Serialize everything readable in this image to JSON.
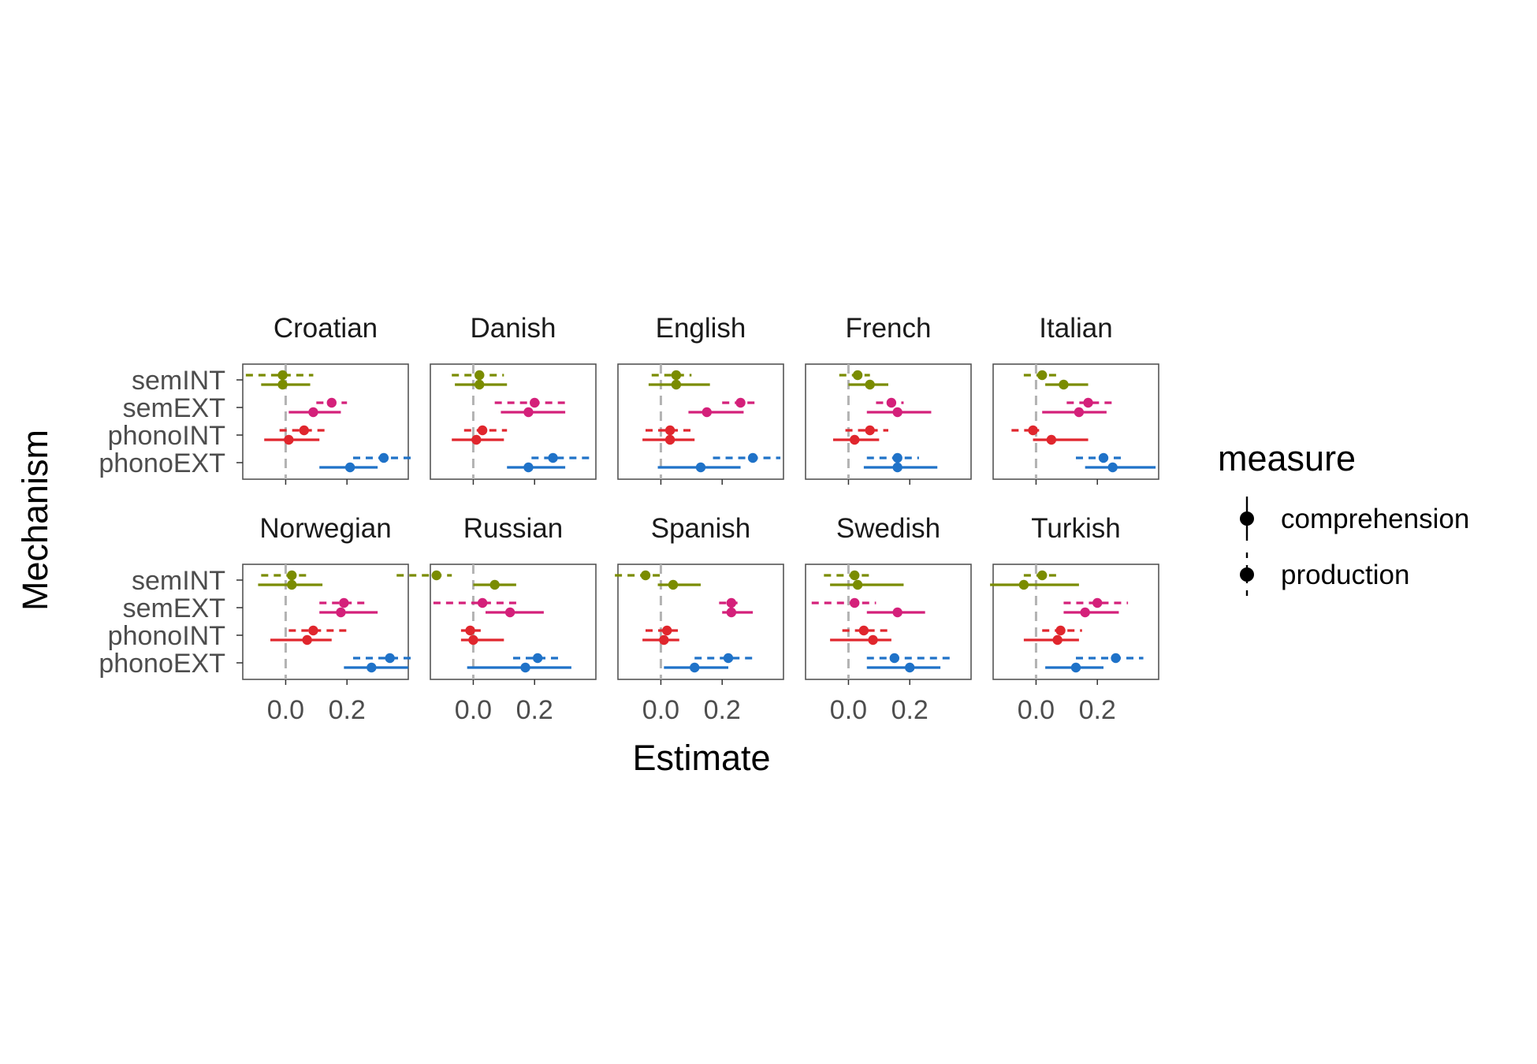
{
  "chart_data": {
    "type": "scatter",
    "chart_style": "faceted dot-and-whisker (point estimate with interval)",
    "xlabel": "Estimate",
    "ylabel": "Mechanism",
    "xlim": [
      -0.14,
      0.4
    ],
    "x_ticks": [
      0.0,
      0.2
    ],
    "x_tick_labels": [
      "0.0",
      "0.2"
    ],
    "reference_line_x": 0.0,
    "categories": [
      "semINT",
      "semEXT",
      "phonoINT",
      "phonoEXT"
    ],
    "category_colors": {
      "semINT": "#7a8c00",
      "semEXT": "#d4207a",
      "phonoINT": "#e0262d",
      "phonoEXT": "#1f72c8"
    },
    "colors": {
      "reference_line": "#b3b3b3",
      "panel_border": "#555555",
      "text": "#000000",
      "tick_text": "#4d4d4d"
    },
    "legend": {
      "title": "measure",
      "placement": "right",
      "entries": [
        {
          "name": "comprehension",
          "linestyle": "solid"
        },
        {
          "name": "production",
          "linestyle": "dashed"
        }
      ]
    },
    "facets": [
      {
        "name": "Croatian",
        "points": [
          {
            "category": "semINT",
            "measure": "production",
            "x": -0.01,
            "lo": -0.13,
            "hi": 0.09
          },
          {
            "category": "semINT",
            "measure": "comprehension",
            "x": -0.01,
            "lo": -0.08,
            "hi": 0.08
          },
          {
            "category": "semEXT",
            "measure": "production",
            "x": 0.15,
            "lo": 0.1,
            "hi": 0.2
          },
          {
            "category": "semEXT",
            "measure": "comprehension",
            "x": 0.09,
            "lo": 0.01,
            "hi": 0.18
          },
          {
            "category": "phonoINT",
            "measure": "production",
            "x": 0.06,
            "lo": -0.02,
            "hi": 0.14
          },
          {
            "category": "phonoINT",
            "measure": "comprehension",
            "x": 0.01,
            "lo": -0.07,
            "hi": 0.11
          },
          {
            "category": "phonoEXT",
            "measure": "production",
            "x": 0.32,
            "lo": 0.22,
            "hi": 0.41
          },
          {
            "category": "phonoEXT",
            "measure": "comprehension",
            "x": 0.21,
            "lo": 0.11,
            "hi": 0.3
          }
        ]
      },
      {
        "name": "Danish",
        "points": [
          {
            "category": "semINT",
            "measure": "production",
            "x": 0.02,
            "lo": -0.07,
            "hi": 0.1
          },
          {
            "category": "semINT",
            "measure": "comprehension",
            "x": 0.02,
            "lo": -0.06,
            "hi": 0.11
          },
          {
            "category": "semEXT",
            "measure": "production",
            "x": 0.2,
            "lo": 0.07,
            "hi": 0.3
          },
          {
            "category": "semEXT",
            "measure": "comprehension",
            "x": 0.18,
            "lo": 0.09,
            "hi": 0.3
          },
          {
            "category": "phonoINT",
            "measure": "production",
            "x": 0.03,
            "lo": -0.03,
            "hi": 0.11
          },
          {
            "category": "phonoINT",
            "measure": "comprehension",
            "x": 0.01,
            "lo": -0.07,
            "hi": 0.1
          },
          {
            "category": "phonoEXT",
            "measure": "production",
            "x": 0.26,
            "lo": 0.19,
            "hi": 0.38
          },
          {
            "category": "phonoEXT",
            "measure": "comprehension",
            "x": 0.18,
            "lo": 0.11,
            "hi": 0.3
          }
        ]
      },
      {
        "name": "English",
        "points": [
          {
            "category": "semINT",
            "measure": "production",
            "x": 0.05,
            "lo": -0.03,
            "hi": 0.1
          },
          {
            "category": "semINT",
            "measure": "comprehension",
            "x": 0.05,
            "lo": -0.04,
            "hi": 0.16
          },
          {
            "category": "semEXT",
            "measure": "production",
            "x": 0.26,
            "lo": 0.2,
            "hi": 0.32
          },
          {
            "category": "semEXT",
            "measure": "comprehension",
            "x": 0.15,
            "lo": 0.09,
            "hi": 0.27
          },
          {
            "category": "phonoINT",
            "measure": "production",
            "x": 0.03,
            "lo": -0.05,
            "hi": 0.11
          },
          {
            "category": "phonoINT",
            "measure": "comprehension",
            "x": 0.03,
            "lo": -0.06,
            "hi": 0.11
          },
          {
            "category": "phonoEXT",
            "measure": "production",
            "x": 0.3,
            "lo": 0.17,
            "hi": 0.39
          },
          {
            "category": "phonoEXT",
            "measure": "comprehension",
            "x": 0.13,
            "lo": -0.01,
            "hi": 0.26
          }
        ]
      },
      {
        "name": "French",
        "points": [
          {
            "category": "semINT",
            "measure": "production",
            "x": 0.03,
            "lo": -0.03,
            "hi": 0.07
          },
          {
            "category": "semINT",
            "measure": "comprehension",
            "x": 0.07,
            "lo": 0.0,
            "hi": 0.13
          },
          {
            "category": "semEXT",
            "measure": "production",
            "x": 0.14,
            "lo": 0.09,
            "hi": 0.18
          },
          {
            "category": "semEXT",
            "measure": "comprehension",
            "x": 0.16,
            "lo": 0.06,
            "hi": 0.27
          },
          {
            "category": "phonoINT",
            "measure": "production",
            "x": 0.07,
            "lo": -0.01,
            "hi": 0.13
          },
          {
            "category": "phonoINT",
            "measure": "comprehension",
            "x": 0.02,
            "lo": -0.05,
            "hi": 0.1
          },
          {
            "category": "phonoEXT",
            "measure": "production",
            "x": 0.16,
            "lo": 0.06,
            "hi": 0.23
          },
          {
            "category": "phonoEXT",
            "measure": "comprehension",
            "x": 0.16,
            "lo": 0.05,
            "hi": 0.29
          }
        ]
      },
      {
        "name": "Italian",
        "points": [
          {
            "category": "semINT",
            "measure": "production",
            "x": 0.02,
            "lo": -0.04,
            "hi": 0.08
          },
          {
            "category": "semINT",
            "measure": "comprehension",
            "x": 0.09,
            "lo": 0.03,
            "hi": 0.17
          },
          {
            "category": "semEXT",
            "measure": "production",
            "x": 0.17,
            "lo": 0.1,
            "hi": 0.25
          },
          {
            "category": "semEXT",
            "measure": "comprehension",
            "x": 0.14,
            "lo": 0.02,
            "hi": 0.23
          },
          {
            "category": "phonoINT",
            "measure": "production",
            "x": -0.01,
            "lo": -0.08,
            "hi": 0.01
          },
          {
            "category": "phonoINT",
            "measure": "comprehension",
            "x": 0.05,
            "lo": -0.01,
            "hi": 0.17
          },
          {
            "category": "phonoEXT",
            "measure": "production",
            "x": 0.22,
            "lo": 0.13,
            "hi": 0.29
          },
          {
            "category": "phonoEXT",
            "measure": "comprehension",
            "x": 0.25,
            "lo": 0.16,
            "hi": 0.39
          }
        ]
      },
      {
        "name": "Norwegian",
        "points": [
          {
            "category": "semINT",
            "measure": "production",
            "x": 0.02,
            "lo": -0.08,
            "hi": 0.08
          },
          {
            "category": "semINT",
            "measure": "comprehension",
            "x": 0.02,
            "lo": -0.09,
            "hi": 0.12
          },
          {
            "category": "semEXT",
            "measure": "production",
            "x": 0.19,
            "lo": 0.11,
            "hi": 0.27
          },
          {
            "category": "semEXT",
            "measure": "comprehension",
            "x": 0.18,
            "lo": 0.11,
            "hi": 0.3
          },
          {
            "category": "phonoINT",
            "measure": "production",
            "x": 0.09,
            "lo": 0.01,
            "hi": 0.2
          },
          {
            "category": "phonoINT",
            "measure": "comprehension",
            "x": 0.07,
            "lo": -0.05,
            "hi": 0.15
          },
          {
            "category": "phonoEXT",
            "measure": "production",
            "x": 0.34,
            "lo": 0.22,
            "hi": 0.42
          },
          {
            "category": "phonoEXT",
            "measure": "comprehension",
            "x": 0.28,
            "lo": 0.19,
            "hi": 0.4
          }
        ]
      },
      {
        "name": "Russian",
        "points": [
          {
            "category": "semINT",
            "measure": "production",
            "x": -0.12,
            "lo": -0.25,
            "hi": -0.07
          },
          {
            "category": "semINT",
            "measure": "comprehension",
            "x": 0.07,
            "lo": 0.0,
            "hi": 0.14
          },
          {
            "category": "semEXT",
            "measure": "production",
            "x": 0.03,
            "lo": -0.13,
            "hi": 0.15
          },
          {
            "category": "semEXT",
            "measure": "comprehension",
            "x": 0.12,
            "lo": 0.04,
            "hi": 0.23
          },
          {
            "category": "phonoINT",
            "measure": "production",
            "x": -0.01,
            "lo": -0.04,
            "hi": 0.03
          },
          {
            "category": "phonoINT",
            "measure": "comprehension",
            "x": 0.0,
            "lo": -0.04,
            "hi": 0.1
          },
          {
            "category": "phonoEXT",
            "measure": "production",
            "x": 0.21,
            "lo": 0.13,
            "hi": 0.28
          },
          {
            "category": "phonoEXT",
            "measure": "comprehension",
            "x": 0.17,
            "lo": -0.02,
            "hi": 0.32
          }
        ]
      },
      {
        "name": "Spanish",
        "points": [
          {
            "category": "semINT",
            "measure": "production",
            "x": -0.05,
            "lo": -0.15,
            "hi": 0.0
          },
          {
            "category": "semINT",
            "measure": "comprehension",
            "x": 0.04,
            "lo": -0.01,
            "hi": 0.13
          },
          {
            "category": "semEXT",
            "measure": "production",
            "x": 0.23,
            "lo": 0.19,
            "hi": 0.25
          },
          {
            "category": "semEXT",
            "measure": "comprehension",
            "x": 0.23,
            "lo": 0.2,
            "hi": 0.3
          },
          {
            "category": "phonoINT",
            "measure": "production",
            "x": 0.02,
            "lo": -0.05,
            "hi": 0.07
          },
          {
            "category": "phonoINT",
            "measure": "comprehension",
            "x": 0.01,
            "lo": -0.06,
            "hi": 0.06
          },
          {
            "category": "phonoEXT",
            "measure": "production",
            "x": 0.22,
            "lo": 0.11,
            "hi": 0.31
          },
          {
            "category": "phonoEXT",
            "measure": "comprehension",
            "x": 0.11,
            "lo": 0.01,
            "hi": 0.22
          }
        ]
      },
      {
        "name": "Swedish",
        "points": [
          {
            "category": "semINT",
            "measure": "production",
            "x": 0.02,
            "lo": -0.08,
            "hi": 0.08
          },
          {
            "category": "semINT",
            "measure": "comprehension",
            "x": 0.03,
            "lo": -0.06,
            "hi": 0.18
          },
          {
            "category": "semEXT",
            "measure": "production",
            "x": 0.02,
            "lo": -0.12,
            "hi": 0.09
          },
          {
            "category": "semEXT",
            "measure": "comprehension",
            "x": 0.16,
            "lo": 0.06,
            "hi": 0.25
          },
          {
            "category": "phonoINT",
            "measure": "production",
            "x": 0.05,
            "lo": -0.02,
            "hi": 0.13
          },
          {
            "category": "phonoINT",
            "measure": "comprehension",
            "x": 0.08,
            "lo": -0.06,
            "hi": 0.14
          },
          {
            "category": "phonoEXT",
            "measure": "production",
            "x": 0.15,
            "lo": 0.06,
            "hi": 0.34
          },
          {
            "category": "phonoEXT",
            "measure": "comprehension",
            "x": 0.2,
            "lo": 0.06,
            "hi": 0.3
          }
        ]
      },
      {
        "name": "Turkish",
        "points": [
          {
            "category": "semINT",
            "measure": "production",
            "x": 0.02,
            "lo": -0.04,
            "hi": 0.08
          },
          {
            "category": "semINT",
            "measure": "comprehension",
            "x": -0.04,
            "lo": -0.15,
            "hi": 0.14
          },
          {
            "category": "semEXT",
            "measure": "production",
            "x": 0.2,
            "lo": 0.09,
            "hi": 0.3
          },
          {
            "category": "semEXT",
            "measure": "comprehension",
            "x": 0.16,
            "lo": 0.09,
            "hi": 0.27
          },
          {
            "category": "phonoINT",
            "measure": "production",
            "x": 0.08,
            "lo": 0.02,
            "hi": 0.15
          },
          {
            "category": "phonoINT",
            "measure": "comprehension",
            "x": 0.07,
            "lo": -0.04,
            "hi": 0.14
          },
          {
            "category": "phonoEXT",
            "measure": "production",
            "x": 0.26,
            "lo": 0.13,
            "hi": 0.35
          },
          {
            "category": "phonoEXT",
            "measure": "comprehension",
            "x": 0.13,
            "lo": 0.03,
            "hi": 0.22
          }
        ]
      }
    ]
  }
}
